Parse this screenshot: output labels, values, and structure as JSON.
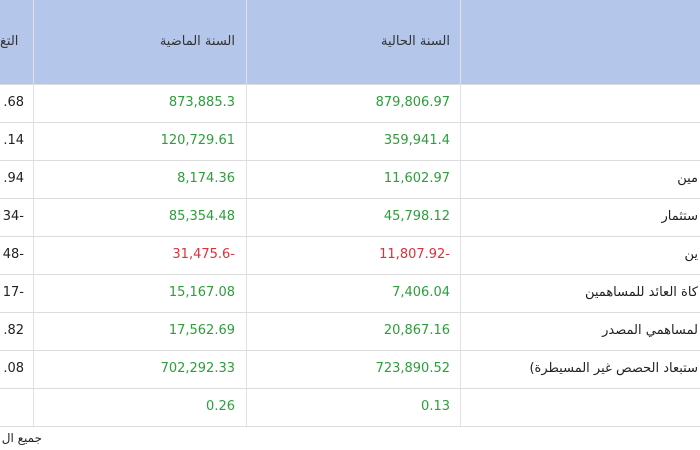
{
  "table": {
    "header": {
      "change": "التغ",
      "previous": "السنة الماضية",
      "current": "السنة الحالية"
    },
    "rows": [
      {
        "label": null,
        "current": "879,806.97",
        "previous": "873,885.3",
        "change": ".68",
        "color": "#2e9d3c"
      },
      {
        "label": null,
        "current": "359,941.4",
        "previous": "120,729.61",
        "change": ".14",
        "color": "#2e9d3c"
      },
      {
        "label": "مين",
        "current": "11,602.97",
        "previous": "8,174.36",
        "change": ".94",
        "color": "#2e9d3c"
      },
      {
        "label": "ستثمار",
        "current": "45,798.12",
        "previous": "85,354.48",
        "change": "34-",
        "color": "#2e9d3c"
      },
      {
        "label": "ين",
        "current": "11,807.92-",
        "previous": "31,475.6-",
        "change": "48-",
        "color": "#e0303a"
      },
      {
        "label": "كاة العائد للمساهمين",
        "current": "7,406.04",
        "previous": "15,167.08",
        "change": "17-",
        "color": "#2e9d3c"
      },
      {
        "label": "لمساهمي المصدر",
        "current": "20,867.16",
        "previous": "17,562.69",
        "change": ".82",
        "color": "#2e9d3c"
      },
      {
        "label": "ستبعاد الحصص غير المسيطرة)",
        "current": "723,890.52",
        "previous": "702,292.33",
        "change": ".08",
        "color": "#2e9d3c"
      },
      {
        "label": null,
        "current": "0.13",
        "previous": "0.26",
        "change": null,
        "color": "#2e9d3c"
      }
    ],
    "footer": "جميع ال"
  }
}
